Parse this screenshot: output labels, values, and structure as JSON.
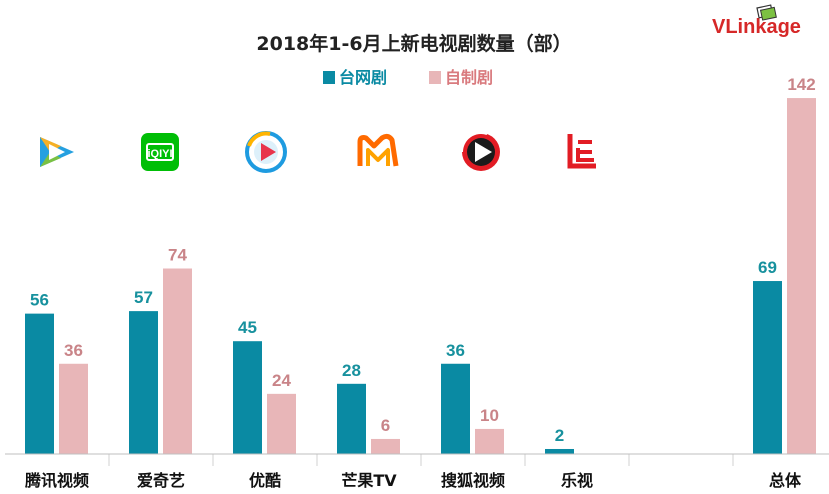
{
  "brand": {
    "logo_text": "VLinkage"
  },
  "chart_data": {
    "type": "bar",
    "title": "2018年1-6月上新电视剧数量（部）",
    "categories": [
      "腾讯视频",
      "爱奇艺",
      "优酷",
      "芒果TV",
      "搜狐视频",
      "乐视",
      "",
      "总体"
    ],
    "series": [
      {
        "name": "台网剧",
        "color": "#0a8aa3",
        "values": [
          56,
          57,
          45,
          28,
          36,
          2,
          null,
          69
        ]
      },
      {
        "name": "自制剧",
        "color": "#e8b6b8",
        "values": [
          36,
          74,
          24,
          6,
          10,
          null,
          null,
          142
        ]
      }
    ],
    "value_label_color": "#17919e",
    "value_label_color_secondary": "#c98488",
    "xlabel": "",
    "ylabel": "",
    "ylim": [
      0,
      150
    ],
    "grid": false,
    "legend_position": "top-center",
    "platform_icons": [
      "tencent-video-icon",
      "iqiyi-icon",
      "youku-icon",
      "mango-tv-icon",
      "sohu-video-icon",
      "letv-icon"
    ]
  }
}
